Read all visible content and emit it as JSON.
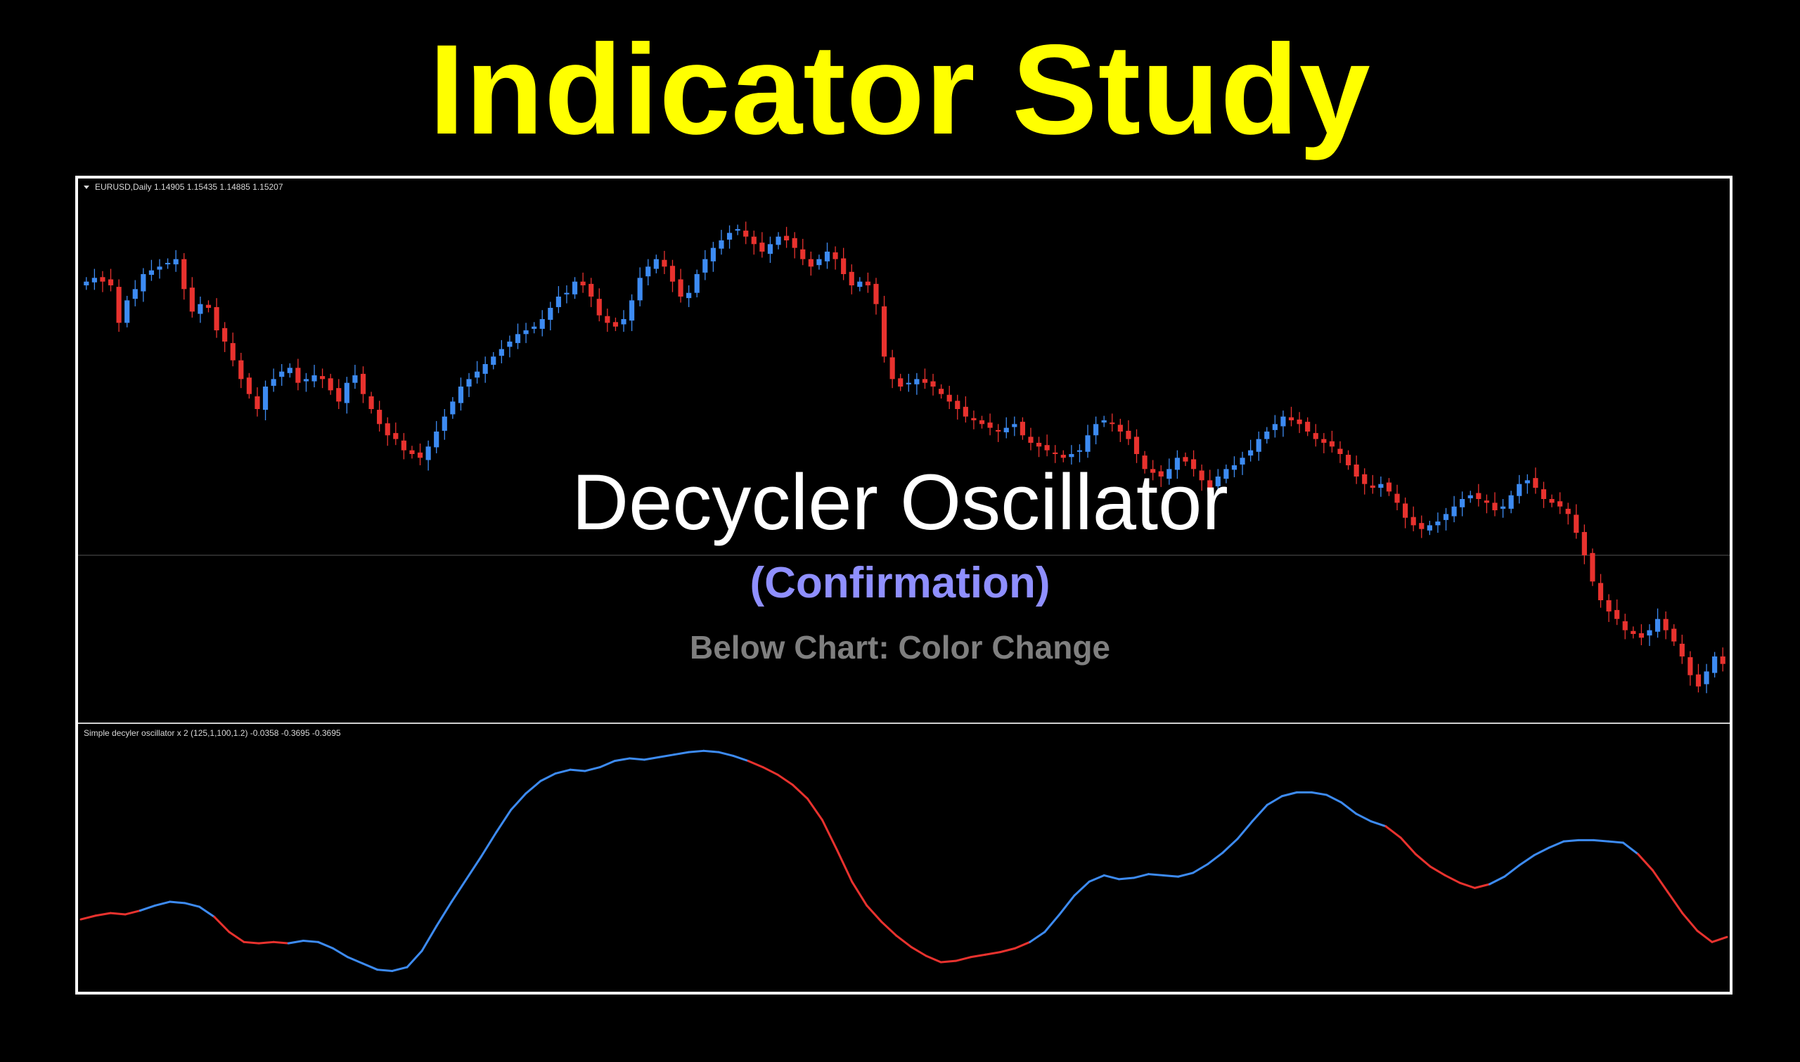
{
  "headline": {
    "text": "Indicator Study",
    "color": "#ffff00"
  },
  "overlay": {
    "title": "Decycler Oscillator",
    "title_color": "#ffffff",
    "subtitle": "(Confirmation)",
    "subtitle_color": "#8f8fff",
    "note": "Below Chart: Color Change",
    "note_color": "#7f7f7f"
  },
  "colors": {
    "background": "#000000",
    "frame": "#ffffff",
    "bull": "#3d8bf2",
    "bear": "#e8322e",
    "separator": "#cfcfcf",
    "zero_line": "#555555",
    "label": "#d8d8d8"
  },
  "chart_data": [
    {
      "type": "candlestick",
      "label": "EURUSD,Daily  1.14905 1.15435 1.14885 1.15207",
      "label_marker": "triangle-down-icon",
      "series_close": [
        0.6,
        0.61,
        0.6,
        0.59,
        0.49,
        0.55,
        0.58,
        0.62,
        0.63,
        0.64,
        0.65,
        0.66,
        0.58,
        0.52,
        0.54,
        0.53,
        0.47,
        0.44,
        0.39,
        0.34,
        0.3,
        0.26,
        0.32,
        0.34,
        0.36,
        0.37,
        0.33,
        0.34,
        0.35,
        0.34,
        0.31,
        0.28,
        0.33,
        0.35,
        0.3,
        0.26,
        0.22,
        0.19,
        0.18,
        0.15,
        0.14,
        0.13,
        0.16,
        0.2,
        0.24,
        0.28,
        0.32,
        0.34,
        0.36,
        0.38,
        0.4,
        0.42,
        0.44,
        0.46,
        0.47,
        0.48,
        0.5,
        0.53,
        0.56,
        0.57,
        0.6,
        0.59,
        0.56,
        0.51,
        0.49,
        0.48,
        0.5,
        0.55,
        0.61,
        0.64,
        0.66,
        0.64,
        0.6,
        0.56,
        0.57,
        0.62,
        0.66,
        0.69,
        0.71,
        0.73,
        0.74,
        0.72,
        0.7,
        0.68,
        0.7,
        0.72,
        0.71,
        0.69,
        0.66,
        0.64,
        0.66,
        0.68,
        0.66,
        0.62,
        0.59,
        0.6,
        0.59,
        0.54,
        0.4,
        0.34,
        0.32,
        0.33,
        0.34,
        0.33,
        0.32,
        0.3,
        0.28,
        0.26,
        0.24,
        0.23,
        0.22,
        0.21,
        0.2,
        0.21,
        0.22,
        0.19,
        0.17,
        0.16,
        0.15,
        0.14,
        0.13,
        0.14,
        0.15,
        0.19,
        0.22,
        0.23,
        0.22,
        0.2,
        0.18,
        0.14,
        0.1,
        0.09,
        0.08,
        0.1,
        0.13,
        0.12,
        0.1,
        0.07,
        0.05,
        0.08,
        0.1,
        0.11,
        0.13,
        0.15,
        0.18,
        0.2,
        0.22,
        0.24,
        0.23,
        0.22,
        0.2,
        0.18,
        0.17,
        0.16,
        0.14,
        0.11,
        0.08,
        0.06,
        0.05,
        0.06,
        0.04,
        0.01,
        -0.03,
        -0.05,
        -0.06,
        -0.05,
        -0.04,
        -0.02,
        0.0,
        0.02,
        0.03,
        0.02,
        0.01,
        -0.01,
        0.0,
        0.03,
        0.06,
        0.07,
        0.05,
        0.02,
        0.01,
        0.0,
        -0.02,
        -0.07,
        -0.13,
        -0.2,
        -0.25,
        -0.28,
        -0.3,
        -0.33,
        -0.34,
        -0.35,
        -0.33,
        -0.3,
        -0.33,
        -0.36,
        -0.4,
        -0.45,
        -0.48,
        -0.44,
        -0.4,
        -0.42
      ]
    },
    {
      "type": "line",
      "label": "Simple decyler oscillator x 2 (125,1,100,1.2) -0.0358 -0.3695 -0.3695",
      "segment_colors": [
        "#e8322e",
        "#3d8bf2"
      ],
      "values": [
        0.33,
        0.36,
        0.38,
        0.37,
        0.4,
        0.44,
        0.47,
        0.46,
        0.43,
        0.35,
        0.23,
        0.15,
        0.14,
        0.15,
        0.14,
        0.16,
        0.15,
        0.1,
        0.03,
        -0.02,
        -0.07,
        -0.08,
        -0.05,
        0.08,
        0.28,
        0.47,
        0.65,
        0.83,
        1.02,
        1.2,
        1.33,
        1.43,
        1.49,
        1.52,
        1.51,
        1.54,
        1.59,
        1.61,
        1.6,
        1.62,
        1.64,
        1.66,
        1.67,
        1.66,
        1.63,
        1.59,
        1.54,
        1.48,
        1.4,
        1.29,
        1.12,
        0.88,
        0.63,
        0.44,
        0.31,
        0.2,
        0.11,
        0.04,
        -0.01,
        0.0,
        0.03,
        0.05,
        0.07,
        0.1,
        0.15,
        0.23,
        0.37,
        0.52,
        0.63,
        0.68,
        0.65,
        0.66,
        0.69,
        0.68,
        0.67,
        0.7,
        0.77,
        0.86,
        0.97,
        1.11,
        1.24,
        1.31,
        1.34,
        1.34,
        1.32,
        1.26,
        1.17,
        1.11,
        1.07,
        0.98,
        0.85,
        0.75,
        0.68,
        0.62,
        0.58,
        0.61,
        0.67,
        0.76,
        0.84,
        0.9,
        0.95,
        0.96,
        0.96,
        0.95,
        0.94,
        0.85,
        0.72,
        0.55,
        0.38,
        0.24,
        0.15,
        0.19
      ],
      "colors": [
        "red",
        "red",
        "red",
        "red",
        "blue",
        "blue",
        "blue",
        "blue",
        "blue",
        "red",
        "red",
        "red",
        "red",
        "red",
        "blue",
        "blue",
        "blue",
        "blue",
        "blue",
        "blue",
        "blue",
        "blue",
        "blue",
        "blue",
        "blue",
        "blue",
        "blue",
        "blue",
        "blue",
        "blue",
        "blue",
        "blue",
        "blue",
        "blue",
        "blue",
        "blue",
        "blue",
        "blue",
        "blue",
        "blue",
        "blue",
        "blue",
        "blue",
        "blue",
        "blue",
        "red",
        "red",
        "red",
        "red",
        "red",
        "red",
        "red",
        "red",
        "red",
        "red",
        "red",
        "red",
        "red",
        "red",
        "red",
        "red",
        "red",
        "red",
        "red",
        "blue",
        "blue",
        "blue",
        "blue",
        "blue",
        "blue",
        "blue",
        "blue",
        "blue",
        "blue",
        "blue",
        "blue",
        "blue",
        "blue",
        "blue",
        "blue",
        "blue",
        "blue",
        "blue",
        "blue",
        "blue",
        "blue",
        "blue",
        "blue",
        "red",
        "red",
        "red",
        "red",
        "red",
        "red",
        "red",
        "blue",
        "blue",
        "blue",
        "blue",
        "blue",
        "blue",
        "blue",
        "blue",
        "blue",
        "blue",
        "red",
        "red",
        "red",
        "red",
        "red",
        "red",
        "red"
      ]
    }
  ]
}
